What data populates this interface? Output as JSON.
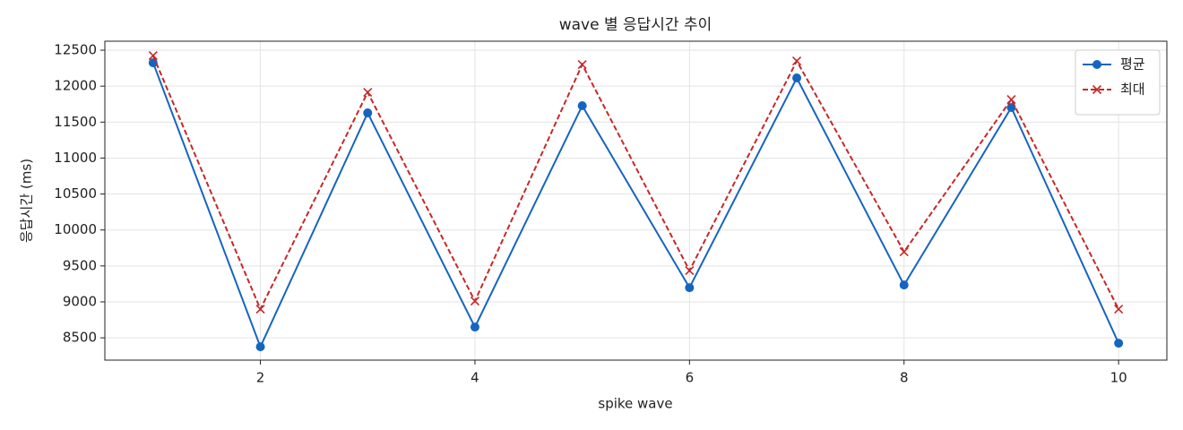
{
  "chart_data": {
    "type": "line",
    "title": "wave 별 응답시간 추이",
    "xlabel": "spike wave",
    "ylabel": "응답시간 (ms)",
    "x": [
      1,
      2,
      3,
      4,
      5,
      6,
      7,
      8,
      9,
      10
    ],
    "series": [
      {
        "name": "평균",
        "color": "#1565c0",
        "marker": "o",
        "linestyle": "solid",
        "values": [
          12325,
          8375,
          11628,
          8650,
          11728,
          9198,
          12114,
          9235,
          11703,
          8425
        ]
      },
      {
        "name": "최대",
        "color": "#c62828",
        "marker": "x",
        "linestyle": "dashed",
        "values": [
          12425,
          8899,
          11914,
          9011,
          12301,
          9435,
          12350,
          9696,
          11815,
          8899
        ]
      }
    ],
    "xlim": [
      0.55,
      10.45
    ],
    "xticks": [
      2,
      4,
      6,
      8,
      10
    ],
    "ylim": [
      8190,
      12625
    ],
    "yticks": [
      8500,
      9000,
      9500,
      10000,
      10500,
      11000,
      11500,
      12000,
      12500
    ],
    "grid": true,
    "legend": "upper right"
  }
}
